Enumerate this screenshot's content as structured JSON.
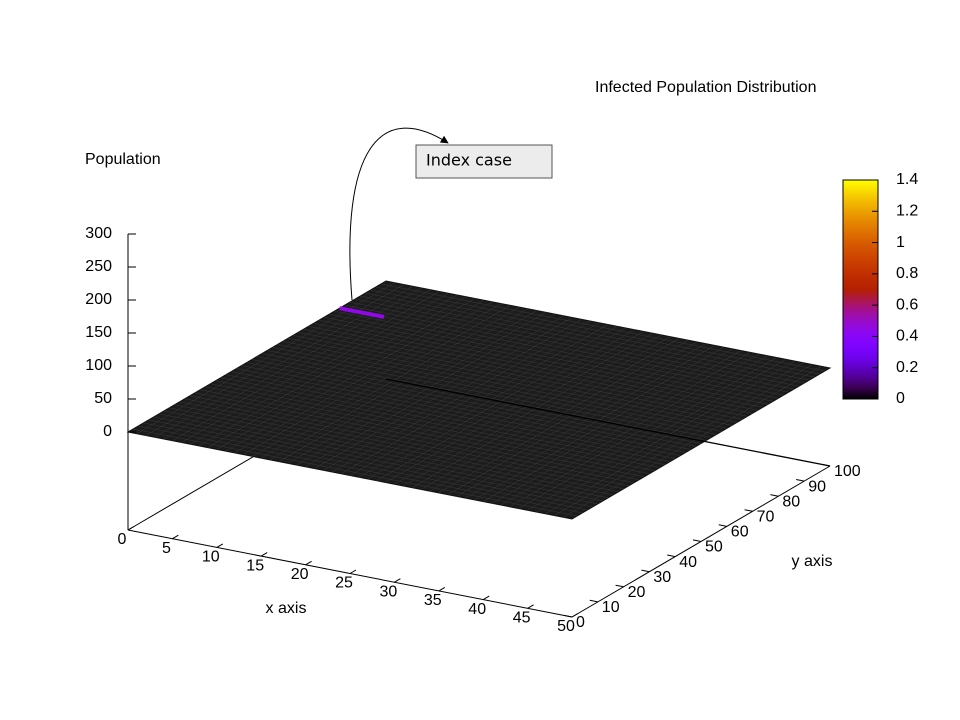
{
  "chart_data": {
    "type": "surface3d",
    "title": "Infected Population Distribution",
    "zlabel": "Population",
    "xlabel": "x axis",
    "ylabel": "y axis",
    "annotation": "Index case",
    "xlim": [
      0,
      50
    ],
    "xticks": [
      0,
      5,
      10,
      15,
      20,
      25,
      30,
      35,
      40,
      45,
      50
    ],
    "ylim": [
      0,
      100
    ],
    "yticks": [
      0,
      10,
      20,
      30,
      40,
      50,
      60,
      70,
      80,
      90,
      100
    ],
    "zlim": [
      0,
      300
    ],
    "zticks": [
      0,
      50,
      100,
      150,
      200,
      250,
      300
    ],
    "cblim": [
      0,
      1.4
    ],
    "cbticks": [
      0,
      0.2,
      0.4,
      0.6,
      0.8,
      1,
      1.2,
      1.4
    ],
    "surface_z": 0,
    "hotspot": {
      "x": [
        0,
        5
      ],
      "y": 82,
      "value": 0.45
    }
  }
}
